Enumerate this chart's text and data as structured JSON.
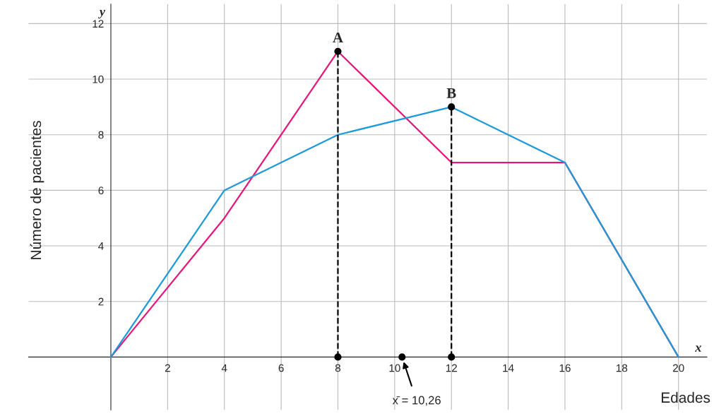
{
  "chart_data": {
    "type": "line",
    "xlabel": "Edades",
    "ylabel": "Número de pacientes",
    "xlim": [
      -2.9,
      21
    ],
    "ylim": [
      -1.9,
      12.7
    ],
    "xticks": [
      2,
      4,
      6,
      8,
      10,
      12,
      14,
      16,
      18,
      20
    ],
    "yticks": [
      2,
      4,
      6,
      8,
      10,
      12
    ],
    "grid": true,
    "series": [
      {
        "color": "#e6177a",
        "x": [
          0,
          4,
          8,
          12,
          16,
          20
        ],
        "values": [
          0,
          5,
          11,
          7,
          7,
          0
        ],
        "marker": "none",
        "line_style": "solid"
      },
      {
        "color": "#1e9bd7",
        "x": [
          0,
          4,
          8,
          12,
          16,
          20
        ],
        "values": [
          0,
          6,
          8,
          9,
          7,
          0
        ],
        "marker": "none",
        "line_style": "solid"
      },
      {
        "type": "line",
        "color": "#000000",
        "x": [
          8,
          8
        ],
        "values": [
          0,
          11
        ],
        "marker": "none",
        "line_style": "dashed"
      },
      {
        "type": "line",
        "color": "#000000",
        "x": [
          12,
          12
        ],
        "values": [
          0,
          9
        ],
        "marker": "none",
        "line_style": "dashed"
      },
      {
        "type": "scatter",
        "color": "#000000",
        "x": [
          8,
          12,
          8,
          12,
          10.26
        ],
        "values": [
          11,
          9,
          0,
          0,
          0
        ],
        "marker": "circle"
      }
    ],
    "annotations": [
      "y",
      "x",
      {
        "text": "A",
        "x": 8,
        "y": 11
      },
      {
        "text": "B",
        "x": 12,
        "y": 9
      },
      "x̄ = 10,26"
    ]
  }
}
